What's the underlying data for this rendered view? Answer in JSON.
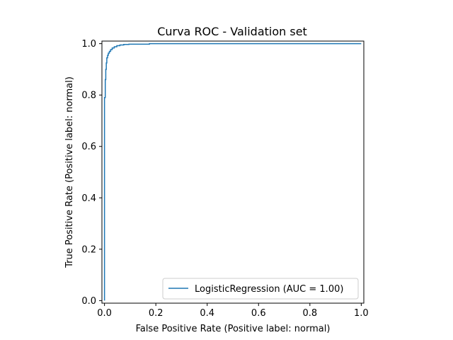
{
  "chart_data": {
    "type": "line",
    "title": "Curva ROC - Validation set",
    "xlabel": "False Positive Rate (Positive label: normal)",
    "ylabel": "True Positive Rate (Positive label: normal)",
    "xlim": [
      -0.01,
      1.01
    ],
    "ylim": [
      -0.01,
      1.01
    ],
    "xticks": [
      0.0,
      0.2,
      0.4,
      0.6,
      0.8,
      1.0
    ],
    "yticks": [
      0.0,
      0.2,
      0.4,
      0.6,
      0.8,
      1.0
    ],
    "tick_labels": [
      "0.0",
      "0.2",
      "0.4",
      "0.6",
      "0.8",
      "1.0"
    ],
    "grid": false,
    "legend_position": "bottom-right",
    "series": [
      {
        "name": "LogisticRegression (AUC = 1.00)",
        "color": "#1f77b4",
        "x": [
          0.0,
          0.0,
          0.003,
          0.003,
          0.005,
          0.005,
          0.007,
          0.007,
          0.009,
          0.009,
          0.012,
          0.012,
          0.015,
          0.015,
          0.019,
          0.019,
          0.024,
          0.024,
          0.03,
          0.03,
          0.038,
          0.038,
          0.048,
          0.048,
          0.06,
          0.06,
          0.075,
          0.075,
          0.095,
          0.095,
          0.175,
          0.175,
          1.0
        ],
        "y": [
          0.0,
          0.79,
          0.79,
          0.86,
          0.86,
          0.9,
          0.9,
          0.925,
          0.925,
          0.945,
          0.945,
          0.955,
          0.955,
          0.963,
          0.963,
          0.97,
          0.97,
          0.977,
          0.977,
          0.983,
          0.983,
          0.988,
          0.988,
          0.992,
          0.992,
          0.995,
          0.995,
          0.997,
          0.997,
          0.998,
          0.998,
          1.0,
          1.0
        ]
      }
    ]
  }
}
